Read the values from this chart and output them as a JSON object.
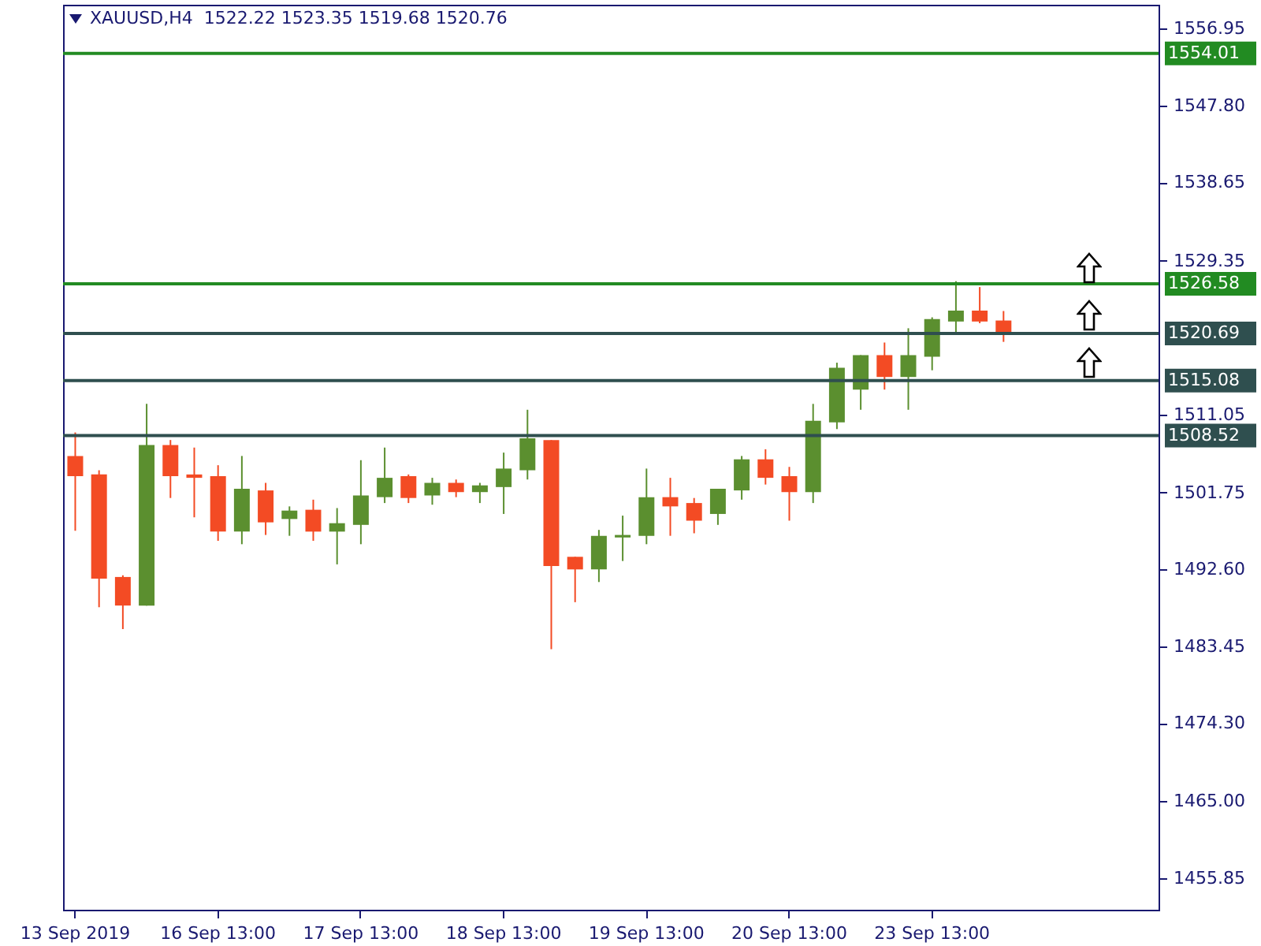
{
  "chart_data": {
    "type": "candlestick",
    "title": "XAUUSD,H4  1522.22 1523.35 1519.68 1520.76",
    "categories": [
      "13 Sep 2019",
      null,
      null,
      null,
      null,
      null,
      "16 Sep 13:00",
      null,
      null,
      null,
      null,
      null,
      "17 Sep 13:00",
      null,
      null,
      null,
      null,
      null,
      "18 Sep 13:00",
      null,
      null,
      null,
      null,
      null,
      "19 Sep 13:00",
      null,
      null,
      null,
      null,
      null,
      "20 Sep 13:00",
      null,
      null,
      null,
      null,
      null,
      "23 Sep 13:00",
      null,
      null,
      null,
      null,
      null,
      null,
      null,
      null,
      null
    ],
    "ohlc": [
      [
        1506.1,
        1508.9,
        1497.2,
        1503.7
      ],
      [
        1503.9,
        1504.4,
        1488.1,
        1491.5
      ],
      [
        1491.7,
        1491.9,
        1485.5,
        1488.3
      ],
      [
        1488.3,
        1512.3,
        1488.3,
        1507.4
      ],
      [
        1507.4,
        1508.0,
        1501.1,
        1503.7
      ],
      [
        1503.9,
        1507.1,
        1498.8,
        1503.5
      ],
      [
        1503.7,
        1505.0,
        1496.0,
        1497.1
      ],
      [
        1497.1,
        1506.1,
        1495.6,
        1502.2
      ],
      [
        1502.0,
        1502.9,
        1496.7,
        1498.2
      ],
      [
        1498.6,
        1500.1,
        1496.6,
        1499.6
      ],
      [
        1499.7,
        1500.9,
        1496.0,
        1497.1
      ],
      [
        1497.1,
        1499.9,
        1493.2,
        1498.1
      ],
      [
        1497.9,
        1505.6,
        1495.6,
        1501.4
      ],
      [
        1501.2,
        1507.1,
        1500.5,
        1503.5
      ],
      [
        1503.7,
        1503.9,
        1500.5,
        1501.1
      ],
      [
        1501.4,
        1503.5,
        1500.3,
        1502.9
      ],
      [
        1502.9,
        1503.3,
        1501.2,
        1501.8
      ],
      [
        1501.8,
        1502.9,
        1500.5,
        1502.6
      ],
      [
        1502.4,
        1506.5,
        1499.2,
        1504.6
      ],
      [
        1504.4,
        1511.6,
        1503.3,
        1508.2
      ],
      [
        1508.0,
        1508.0,
        1483.1,
        1493.0
      ],
      [
        1494.1,
        1494.1,
        1488.7,
        1492.6
      ],
      [
        1492.6,
        1497.3,
        1491.1,
        1496.6
      ],
      [
        1496.4,
        1499.0,
        1493.6,
        1496.7
      ],
      [
        1496.6,
        1504.6,
        1495.6,
        1501.2
      ],
      [
        1501.2,
        1503.5,
        1496.6,
        1500.1
      ],
      [
        1500.5,
        1501.1,
        1496.9,
        1498.4
      ],
      [
        1499.2,
        1502.2,
        1497.9,
        1502.2
      ],
      [
        1502.0,
        1506.1,
        1500.9,
        1505.7
      ],
      [
        1505.7,
        1506.9,
        1502.7,
        1503.5
      ],
      [
        1503.7,
        1504.8,
        1498.4,
        1501.8
      ],
      [
        1501.8,
        1512.3,
        1500.5,
        1510.3
      ],
      [
        1510.1,
        1517.2,
        1509.3,
        1516.6
      ],
      [
        1514.0,
        1518.1,
        1511.6,
        1518.1
      ],
      [
        1518.1,
        1519.6,
        1514.0,
        1515.5
      ],
      [
        1515.5,
        1521.3,
        1511.6,
        1518.1
      ],
      [
        1517.9,
        1522.6,
        1516.3,
        1522.4
      ],
      [
        1522.1,
        1526.9,
        1520.6,
        1523.4
      ],
      [
        1523.4,
        1526.2,
        1521.9,
        1522.1
      ],
      [
        1522.22,
        1523.35,
        1519.68,
        1520.76
      ],
      null,
      null,
      null,
      null,
      null,
      null
    ],
    "colors": [
      "#f34b24",
      "#f34b24",
      "#f34b24",
      "#5b8f2f",
      "#f34b24",
      "#f34b24",
      "#f34b24",
      "#5b8f2f",
      "#f34b24",
      "#5b8f2f",
      "#f34b24",
      "#5b8f2f",
      "#5b8f2f",
      "#5b8f2f",
      "#f34b24",
      "#5b8f2f",
      "#f34b24",
      "#5b8f2f",
      "#5b8f2f",
      "#5b8f2f",
      "#f34b24",
      "#f34b24",
      "#5b8f2f",
      "#5b8f2f",
      "#5b8f2f",
      "#f34b24",
      "#f34b24",
      "#5b8f2f",
      "#5b8f2f",
      "#f34b24",
      "#f34b24",
      "#5b8f2f",
      "#5b8f2f",
      "#5b8f2f",
      "#f34b24",
      "#5b8f2f",
      "#5b8f2f",
      "#5b8f2f",
      "#f34b24",
      "#f34b24",
      null,
      null,
      null,
      null,
      null,
      null
    ],
    "ylim": [
      1452.1,
      1559.8
    ],
    "yticks": [
      1556.95,
      {
        "value": 1547.8,
        "label": "1547.80"
      },
      1538.65,
      1529.35,
      1511.05,
      1501.75,
      {
        "value": 1492.6,
        "label": "1492.60"
      },
      1483.45,
      {
        "value": 1474.3,
        "label": "1474.30"
      },
      {
        "value": 1465,
        "label": "1465.00"
      },
      1455.85
    ],
    "ref_lines": [
      {
        "axis": "y",
        "value": 1554.01,
        "label": "1554.01",
        "color": "#228b22"
      },
      {
        "axis": "y",
        "value": 1526.58,
        "label": "1526.58",
        "color": "#228b22"
      },
      {
        "axis": "y",
        "value": 1520.69,
        "label": "1520.69",
        "color": "#2f4f4f"
      },
      {
        "axis": "y",
        "value": 1515.08,
        "label": "1515.08",
        "color": "#2f4f4f"
      },
      {
        "axis": "y",
        "value": 1508.52,
        "label": "1508.52",
        "color": "#2f4f4f"
      }
    ]
  }
}
